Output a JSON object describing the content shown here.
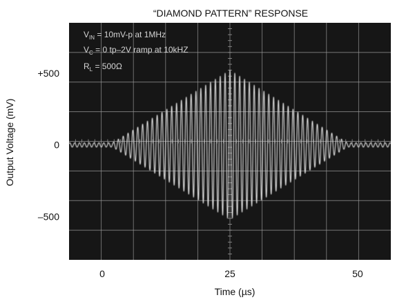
{
  "chart_data": {
    "type": "line",
    "title": "“DIAMOND PATTERN” RESPONSE",
    "xlabel": "Time (µs)",
    "ylabel": "Output Voltage (mV)",
    "xlim": [
      -6.5,
      56.5
    ],
    "ylim": [
      -800,
      850
    ],
    "x_ticks": [
      {
        "value": 0,
        "label": "0"
      },
      {
        "value": 25,
        "label": "25"
      },
      {
        "value": 50,
        "label": "50"
      }
    ],
    "y_ticks": [
      {
        "value": 500,
        "label": "+500"
      },
      {
        "value": 0,
        "label": "0"
      },
      {
        "value": -500,
        "label": "–500"
      }
    ],
    "annotations": [
      {
        "main": "V",
        "sub": "IN",
        "rest": " = 10mV-p at 1MHz"
      },
      {
        "main": "V",
        "sub": "C",
        "rest": " = 0 tp–2V ramp at 10kHZ"
      },
      {
        "main": "R",
        "sub": "L",
        "rest": " = 500Ω"
      }
    ],
    "series": [
      {
        "envelope": {
          "center_us": 25,
          "peak_mV": 520,
          "baseline_mV": 15,
          "half_width_us": 23
        },
        "visible_cycle_period_us": 0.95
      }
    ],
    "grid": true,
    "colors": {
      "screen": "#161616",
      "trace": "#e2e2e2",
      "grid": "#9a9a9a",
      "text": "#111111"
    }
  }
}
